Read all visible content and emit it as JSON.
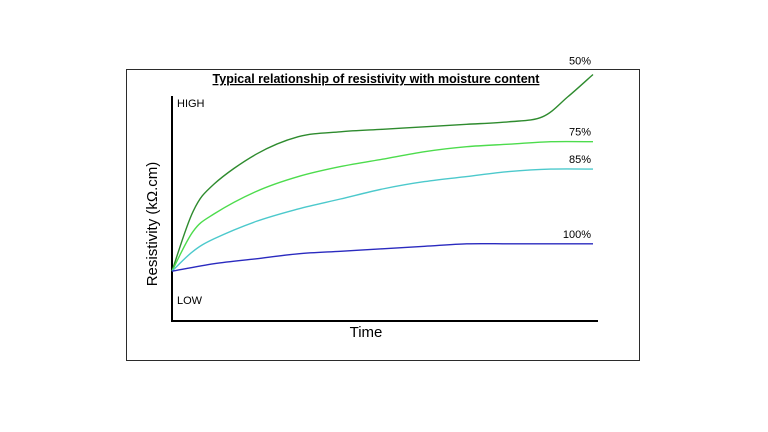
{
  "chart_data": {
    "type": "line",
    "title": "Typical relationship  of resistivity  with moisture content",
    "xlabel": "Time",
    "ylabel": "Resistivity  (kΩ.cm)",
    "y_tick_labels": {
      "high": "HIGH",
      "low": "LOW"
    },
    "xlim": [
      0,
      100
    ],
    "ylim": [
      0,
      100
    ],
    "grid": false,
    "legend": "none (series labeled at line ends)",
    "series": [
      {
        "name": "50%",
        "color": "#2e8b2e",
        "x": [
          0,
          5,
          10,
          20,
          30,
          40,
          50,
          60,
          70,
          80,
          88,
          94,
          100
        ],
        "y": [
          20,
          44,
          55,
          67,
          74,
          76,
          77,
          78,
          79,
          80,
          82,
          90,
          99
        ]
      },
      {
        "name": "75%",
        "color": "#4ddc4d",
        "x": [
          0,
          5,
          10,
          20,
          30,
          40,
          50,
          60,
          70,
          80,
          90,
          100
        ],
        "y": [
          20,
          36,
          43,
          52,
          58,
          62,
          65,
          68,
          70,
          71,
          72,
          72
        ]
      },
      {
        "name": "85%",
        "color": "#4cc9cc",
        "x": [
          0,
          5,
          10,
          20,
          30,
          40,
          50,
          60,
          70,
          80,
          90,
          100
        ],
        "y": [
          20,
          28,
          33,
          40,
          45,
          49,
          53,
          56,
          58,
          60,
          61,
          61
        ]
      },
      {
        "name": "100%",
        "color": "#2a2abf",
        "x": [
          0,
          10,
          20,
          30,
          40,
          50,
          60,
          70,
          80,
          90,
          100
        ],
        "y": [
          20,
          23,
          25,
          27,
          28,
          29,
          30,
          31,
          31,
          31,
          31
        ]
      }
    ]
  }
}
